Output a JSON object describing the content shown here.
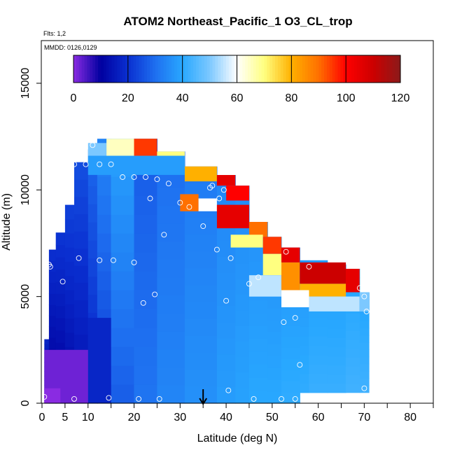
{
  "chart_data": {
    "type": "heatmap",
    "title": "ATOM2 Northeast_Pacific_1 O3_CL_trop",
    "subtitle_lines": [
      "Flts: 1,2",
      "MMDD: 0126,0129"
    ],
    "xlabel": "Latitude (deg N)",
    "ylabel": "Altitude (m)",
    "xlim": [
      0,
      85
    ],
    "ylim": [
      0,
      17000
    ],
    "x_ticks": [
      0,
      5,
      10,
      20,
      30,
      40,
      50,
      60,
      70,
      80
    ],
    "x_minor_ticks": [
      15,
      25,
      35,
      45,
      55,
      65,
      75,
      85
    ],
    "y_ticks": [
      0,
      5000,
      10000,
      15000
    ],
    "colorbar": {
      "ticks": [
        0,
        20,
        40,
        60,
        80,
        100,
        120
      ],
      "range": [
        0,
        120
      ],
      "stops": [
        {
          "v": 0,
          "c": "#8a2be2"
        },
        {
          "v": 10,
          "c": "#0000a0"
        },
        {
          "v": 20,
          "c": "#0a2fd0"
        },
        {
          "v": 30,
          "c": "#1e6ff0"
        },
        {
          "v": 40,
          "c": "#28a8ff"
        },
        {
          "v": 50,
          "c": "#7cc8ff"
        },
        {
          "v": 60,
          "c": "#ffffff"
        },
        {
          "v": 70,
          "c": "#ffff80"
        },
        {
          "v": 80,
          "c": "#ffb000"
        },
        {
          "v": 90,
          "c": "#ff7000"
        },
        {
          "v": 100,
          "c": "#ff0000"
        },
        {
          "v": 110,
          "c": "#cc0000"
        },
        {
          "v": 120,
          "c": "#8b1a1a"
        }
      ]
    },
    "arrow_marker": {
      "x": 35,
      "description": "down-arrow at latitude"
    },
    "columns": [
      {
        "lat0": 0.5,
        "lat1": 1.5,
        "bottom": 0,
        "top": 3000,
        "base": 6
      },
      {
        "lat0": 1.5,
        "lat1": 3,
        "bottom": 0,
        "top": 7200,
        "base": 8
      },
      {
        "lat0": 3,
        "lat1": 5,
        "bottom": 0,
        "top": 8000,
        "base": 9
      },
      {
        "lat0": 5,
        "lat1": 7,
        "bottom": 0,
        "top": 9300,
        "base": 11
      },
      {
        "lat0": 7,
        "lat1": 10,
        "bottom": 0,
        "top": 11300,
        "base": 13
      },
      {
        "lat0": 10,
        "lat1": 12,
        "bottom": 0,
        "top": 11900,
        "base": 17
      },
      {
        "lat0": 12,
        "lat1": 15,
        "bottom": 0,
        "top": 12400,
        "base": 22
      },
      {
        "lat0": 15,
        "lat1": 20,
        "bottom": 0,
        "top": 12400,
        "base": 27
      },
      {
        "lat0": 20,
        "lat1": 25,
        "bottom": 0,
        "top": 12400,
        "base": 31
      },
      {
        "lat0": 25,
        "lat1": 31,
        "bottom": 0,
        "top": 11800,
        "base": 34
      },
      {
        "lat0": 31,
        "lat1": 38,
        "bottom": 0,
        "top": 11100,
        "base": 36
      },
      {
        "lat0": 38,
        "lat1": 42,
        "bottom": 0,
        "top": 10700,
        "base": 38
      },
      {
        "lat0": 42,
        "lat1": 45,
        "bottom": 0,
        "top": 10200,
        "base": 39
      },
      {
        "lat0": 45,
        "lat1": 49,
        "bottom": 0,
        "top": 8500,
        "base": 40
      },
      {
        "lat0": 49,
        "lat1": 52,
        "bottom": 0,
        "top": 7800,
        "base": 40
      },
      {
        "lat0": 52,
        "lat1": 56,
        "bottom": 0,
        "top": 7300,
        "base": 41
      },
      {
        "lat0": 56,
        "lat1": 58,
        "bottom": 500,
        "top": 6700,
        "base": 41
      },
      {
        "lat0": 58,
        "lat1": 62,
        "bottom": 500,
        "top": 6700,
        "base": 42
      },
      {
        "lat0": 62,
        "lat1": 66,
        "bottom": 500,
        "top": 6500,
        "base": 42
      },
      {
        "lat0": 66,
        "lat1": 69,
        "bottom": 500,
        "top": 6300,
        "base": 43
      },
      {
        "lat0": 69,
        "lat1": 71,
        "bottom": 500,
        "top": 5200,
        "base": 43
      }
    ],
    "enhancements": [
      {
        "lat0": 10,
        "lat1": 14,
        "z0": 11400,
        "z1": 12200,
        "v": 50
      },
      {
        "lat0": 14,
        "lat1": 20,
        "z0": 11600,
        "z1": 12400,
        "v": 65
      },
      {
        "lat0": 20,
        "lat1": 25,
        "z0": 11600,
        "z1": 12400,
        "v": 95
      },
      {
        "lat0": 25,
        "lat1": 31,
        "z0": 11000,
        "z1": 11800,
        "v": 70
      },
      {
        "lat0": 31,
        "lat1": 38,
        "z0": 10400,
        "z1": 11100,
        "v": 80
      },
      {
        "lat0": 38,
        "lat1": 42,
        "z0": 10200,
        "z1": 10700,
        "v": 105
      },
      {
        "lat0": 40,
        "lat1": 45,
        "z0": 9500,
        "z1": 10200,
        "v": 100
      },
      {
        "lat0": 30,
        "lat1": 34,
        "z0": 9000,
        "z1": 9800,
        "v": 90
      },
      {
        "lat0": 34,
        "lat1": 38,
        "z0": 9000,
        "z1": 9600,
        "v": 60
      },
      {
        "lat0": 38,
        "lat1": 45,
        "z0": 8200,
        "z1": 9300,
        "v": 105
      },
      {
        "lat0": 45,
        "lat1": 49,
        "z0": 7800,
        "z1": 8500,
        "v": 90
      },
      {
        "lat0": 41,
        "lat1": 48,
        "z0": 7300,
        "z1": 7900,
        "v": 70
      },
      {
        "lat0": 48,
        "lat1": 52,
        "z0": 7000,
        "z1": 7800,
        "v": 95
      },
      {
        "lat0": 52,
        "lat1": 56,
        "z0": 6600,
        "z1": 7300,
        "v": 105
      },
      {
        "lat0": 48,
        "lat1": 52,
        "z0": 6000,
        "z1": 7000,
        "v": 70
      },
      {
        "lat0": 52,
        "lat1": 56,
        "z0": 5300,
        "z1": 6600,
        "v": 85
      },
      {
        "lat0": 56,
        "lat1": 66,
        "z0": 5600,
        "z1": 6600,
        "v": 110
      },
      {
        "lat0": 66,
        "lat1": 69,
        "z0": 5200,
        "z1": 6300,
        "v": 105
      },
      {
        "lat0": 56,
        "lat1": 66,
        "z0": 5000,
        "z1": 5600,
        "v": 80
      },
      {
        "lat0": 45,
        "lat1": 52,
        "z0": 5000,
        "z1": 6000,
        "v": 55
      },
      {
        "lat0": 52,
        "lat1": 58,
        "z0": 4500,
        "z1": 5300,
        "v": 60
      },
      {
        "lat0": 58,
        "lat1": 69,
        "z0": 4300,
        "z1": 5000,
        "v": 55
      },
      {
        "lat0": 69,
        "lat1": 71,
        "z0": 4300,
        "z1": 5200,
        "v": 50
      },
      {
        "lat0": 10,
        "lat1": 31,
        "z0": 10700,
        "z1": 11600,
        "v": 38
      },
      {
        "lat0": 0.5,
        "lat1": 12,
        "z0": 0,
        "z1": 2500,
        "v": 2
      },
      {
        "lat0": 0.5,
        "lat1": 4,
        "z0": 0,
        "z1": 700,
        "v": 0
      },
      {
        "lat0": 10,
        "lat1": 15,
        "z0": 0,
        "z1": 4000,
        "v": 18
      }
    ],
    "points": [
      {
        "x": 0.5,
        "y": 300
      },
      {
        "x": 7,
        "y": 200
      },
      {
        "x": 14.5,
        "y": 250
      },
      {
        "x": 21,
        "y": 200
      },
      {
        "x": 25.5,
        "y": 200
      },
      {
        "x": 40.5,
        "y": 600
      },
      {
        "x": 46,
        "y": 200
      },
      {
        "x": 52,
        "y": 200
      },
      {
        "x": 55,
        "y": 200
      },
      {
        "x": 70,
        "y": 700
      },
      {
        "x": 56,
        "y": 1800
      },
      {
        "x": 52.5,
        "y": 3800
      },
      {
        "x": 55,
        "y": 4000
      },
      {
        "x": 70.5,
        "y": 4300
      },
      {
        "x": 22,
        "y": 4700
      },
      {
        "x": 24.5,
        "y": 5100
      },
      {
        "x": 40,
        "y": 4800
      },
      {
        "x": 70,
        "y": 5000
      },
      {
        "x": 69,
        "y": 5400
      },
      {
        "x": 4.5,
        "y": 5700
      },
      {
        "x": 45,
        "y": 5600
      },
      {
        "x": 47,
        "y": 5900
      },
      {
        "x": 1.5,
        "y": 6500
      },
      {
        "x": 1.8,
        "y": 6400
      },
      {
        "x": 8,
        "y": 6800
      },
      {
        "x": 12.5,
        "y": 6700
      },
      {
        "x": 15.5,
        "y": 6700
      },
      {
        "x": 20,
        "y": 6600
      },
      {
        "x": 38,
        "y": 7200
      },
      {
        "x": 41,
        "y": 6800
      },
      {
        "x": 53,
        "y": 7100
      },
      {
        "x": 58,
        "y": 6400
      },
      {
        "x": 26.5,
        "y": 7900
      },
      {
        "x": 35,
        "y": 8300
      },
      {
        "x": 23.5,
        "y": 9600
      },
      {
        "x": 30,
        "y": 9400
      },
      {
        "x": 32,
        "y": 9200
      },
      {
        "x": 38.5,
        "y": 9600
      },
      {
        "x": 39.5,
        "y": 10000
      },
      {
        "x": 36.5,
        "y": 10100
      },
      {
        "x": 37,
        "y": 10200
      },
      {
        "x": 17.5,
        "y": 10600
      },
      {
        "x": 20,
        "y": 10600
      },
      {
        "x": 22.5,
        "y": 10600
      },
      {
        "x": 25,
        "y": 10500
      },
      {
        "x": 27.5,
        "y": 10300
      },
      {
        "x": 4,
        "y": 11200
      },
      {
        "x": 4.5,
        "y": 11300
      },
      {
        "x": 7,
        "y": 11200
      },
      {
        "x": 9.5,
        "y": 11200
      },
      {
        "x": 12.5,
        "y": 11200
      },
      {
        "x": 15,
        "y": 11200
      },
      {
        "x": 11,
        "y": 12100
      }
    ]
  }
}
